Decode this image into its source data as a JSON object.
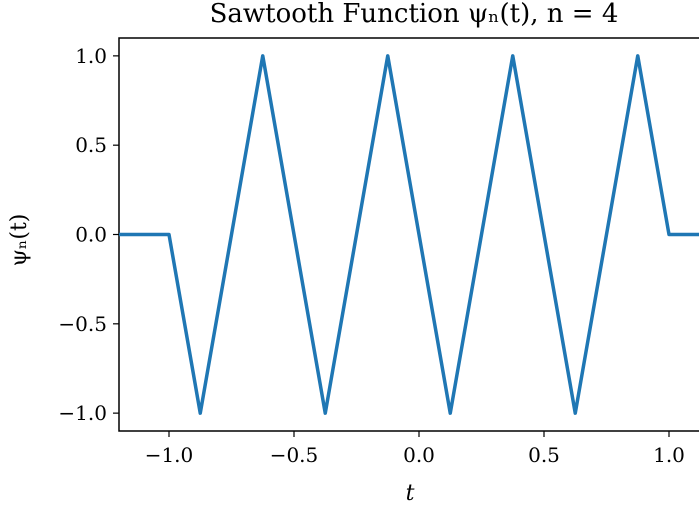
{
  "chart_data": {
    "type": "line",
    "title": "Sawtooth Function ψₙ(t), n = 4",
    "xlabel": "t",
    "ylabel": "ψₙ(t)",
    "xlim": [
      -1.2,
      1.2
    ],
    "ylim": [
      -1.1,
      1.1
    ],
    "grid": false,
    "x_ticks": [
      -1.0,
      -0.5,
      0.0,
      0.5,
      1.0
    ],
    "x_tick_labels": [
      "−1.0",
      "−0.5",
      "0.0",
      "0.5",
      "1.0"
    ],
    "y_ticks": [
      1.0,
      0.5,
      0.0,
      -0.5,
      -1.0
    ],
    "y_tick_labels": [
      "1.0",
      "0.5",
      "0.0",
      "−0.5",
      "−1.0"
    ],
    "series": [
      {
        "color": "#1f77b4",
        "x": [
          -1.2,
          -1.0,
          -0.875,
          -0.625,
          -0.375,
          -0.125,
          0.125,
          0.375,
          0.625,
          0.875,
          1.0,
          1.2
        ],
        "y": [
          0,
          0,
          -1,
          1,
          -1,
          1,
          -1,
          1,
          -1,
          1,
          0,
          0
        ]
      }
    ]
  }
}
